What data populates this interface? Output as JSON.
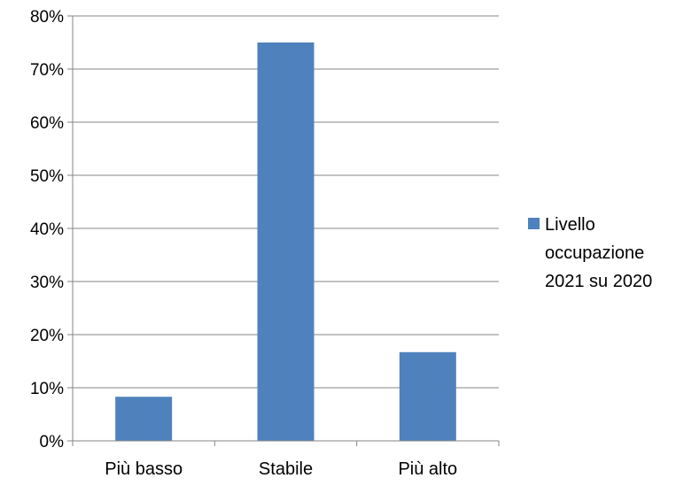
{
  "chart_data": {
    "type": "bar",
    "categories": [
      "Più basso",
      "Stabile",
      "Più alto"
    ],
    "series": [
      {
        "name": "Livello occupazione 2021 su 2020",
        "values": [
          8.3,
          75.0,
          16.7
        ],
        "color": "#4F81BD"
      }
    ],
    "ylim": [
      0,
      80
    ],
    "ytick_step": 10,
    "ytick_labels": [
      "0%",
      "10%",
      "20%",
      "30%",
      "40%",
      "50%",
      "60%",
      "70%",
      "80%"
    ],
    "grid": true,
    "legend": {
      "placement": "right",
      "lines": [
        "Livello",
        "occupazione",
        "2021 su 2020"
      ]
    },
    "title": "",
    "xlabel": "",
    "ylabel": ""
  }
}
